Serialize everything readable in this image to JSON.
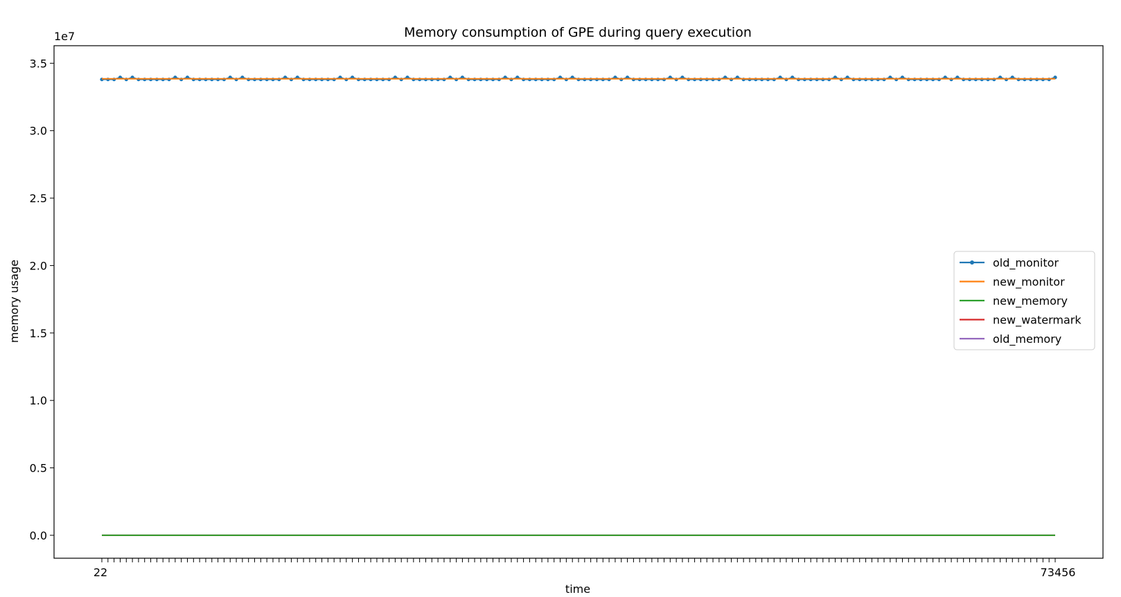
{
  "chart_data": {
    "type": "line",
    "title": "Memory consumption of GPE during query execution",
    "xlabel": "time",
    "ylabel": "memory usage",
    "y_offset_label": "1e7",
    "ylim": [
      -1700000,
      36300000
    ],
    "yticks": [
      0,
      5000000,
      10000000,
      15000000,
      20000000,
      25000000,
      30000000,
      35000000
    ],
    "ytick_labels": [
      "0.0",
      "0.5",
      "1.0",
      "1.5",
      "2.0",
      "2.5",
      "3.0",
      "3.5"
    ],
    "x_count": 157,
    "x_first_label": "22",
    "x_last_label": "73456",
    "legend_position": "center right",
    "series": [
      {
        "name": "old_monitor",
        "color": "#1f77b4",
        "marker": "dot",
        "value_range": [
          33750000,
          33950000
        ]
      },
      {
        "name": "new_monitor",
        "color": "#ff7f0e",
        "marker": "none",
        "value": 33850000
      },
      {
        "name": "new_memory",
        "color": "#2ca02c",
        "marker": "none",
        "value": 0
      },
      {
        "name": "new_watermark",
        "color": "#d62728",
        "marker": "none",
        "value": 0
      },
      {
        "name": "old_memory",
        "color": "#9467bd",
        "marker": "none",
        "value": 0
      }
    ]
  }
}
